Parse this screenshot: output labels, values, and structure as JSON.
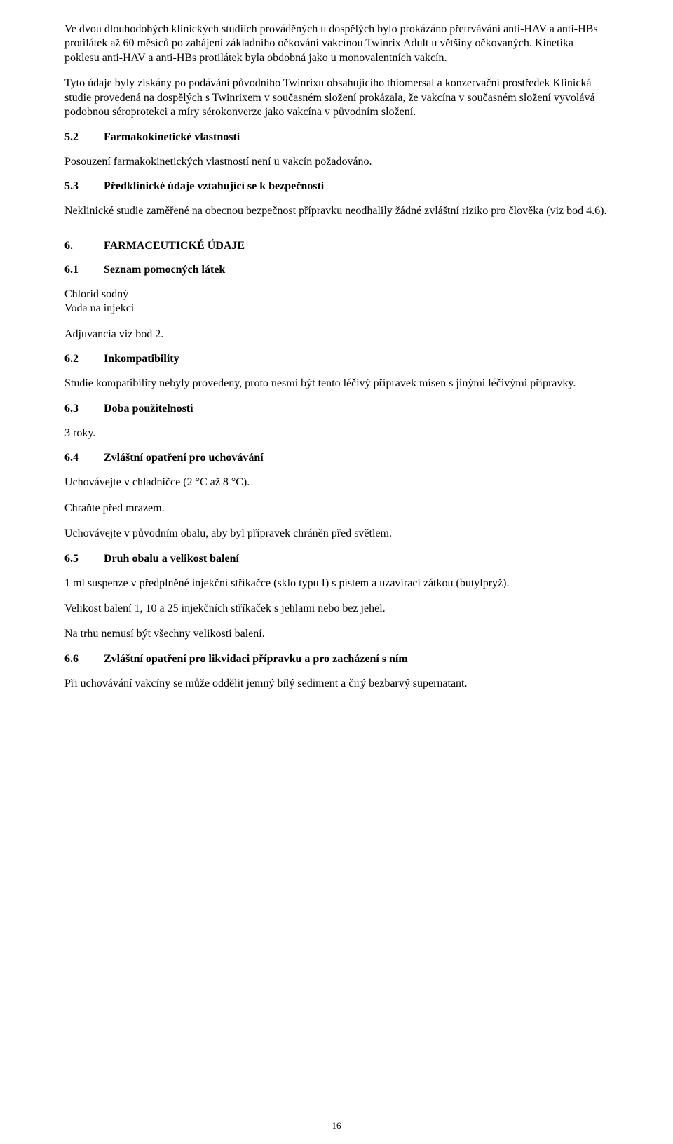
{
  "para1": "Ve dvou dlouhodobých klinických studiích prováděných u dospělých bylo prokázáno přetrvávání anti-HAV a anti-HBs protilátek až 60 měsíců po zahájení základního očkování vakcínou Twinrix Adult u většiny očkovaných. Kinetika poklesu anti-HAV a anti-HBs protilátek byla obdobná jako u monovalentních vakcín.",
  "para2": "Tyto údaje byly získány po podávání původního Twinrixu obsahujícího thiomersal a konzervační prostředek Klinická studie provedená na dospělých s Twinrixem v současném složení prokázala, že vakcína v současném složení vyvolává podobnou séroprotekci a míry sérokonverze jako vakcína v původním složení.",
  "sec52_num": "5.2",
  "sec52_title": "Farmakokinetické vlastnosti",
  "sec52_body": "Posouzení farmakokinetických vlastností není u vakcín požadováno.",
  "sec53_num": "5.3",
  "sec53_title": "Předklinické údaje vztahující se k bezpečnosti",
  "sec53_body": "Neklinické studie zaměřené na obecnou bezpečnost přípravku neodhalily žádné zvláštní riziko pro člověka (viz bod 4.6).",
  "sec6_num": "6.",
  "sec6_title": "FARMACEUTICKÉ ÚDAJE",
  "sec61_num": "6.1",
  "sec61_title": "Seznam pomocných látek",
  "sec61_line1": "Chlorid sodný",
  "sec61_line2": "Voda na injekci",
  "sec61_line3": "Adjuvancia viz bod 2.",
  "sec62_num": "6.2",
  "sec62_title": "Inkompatibility",
  "sec62_body": "Studie kompatibility nebyly provedeny, proto nesmí být tento léčivý přípravek mísen s jinými léčivými přípravky.",
  "sec63_num": "6.3",
  "sec63_title": "Doba použitelnosti",
  "sec63_body": "3 roky.",
  "sec64_num": "6.4",
  "sec64_title": "Zvláštní opatření pro uchovávání",
  "sec64_line1": "Uchovávejte v chladničce (2 °C až 8 °C).",
  "sec64_line2": "Chraňte před mrazem.",
  "sec64_line3": "Uchovávejte v původním obalu, aby byl přípravek chráněn před světlem.",
  "sec65_num": "6.5",
  "sec65_title": "Druh obalu a velikost balení",
  "sec65_line1": "1 ml suspenze v předplněné injekční stříkačce (sklo typu I) s pístem a uzavírací zátkou (butylpryž).",
  "sec65_line2": "Velikost balení 1, 10 a 25 injekčních stříkaček s jehlami nebo bez jehel.",
  "sec65_line3": "Na trhu nemusí být všechny velikosti balení.",
  "sec66_num": "6.6",
  "sec66_title": "Zvláštní opatření pro likvidaci přípravku a pro zacházení s ním",
  "sec66_body": "Při uchovávání vakcíny se může oddělit jemný bílý sediment a čirý bezbarvý supernatant.",
  "page_number": "16"
}
